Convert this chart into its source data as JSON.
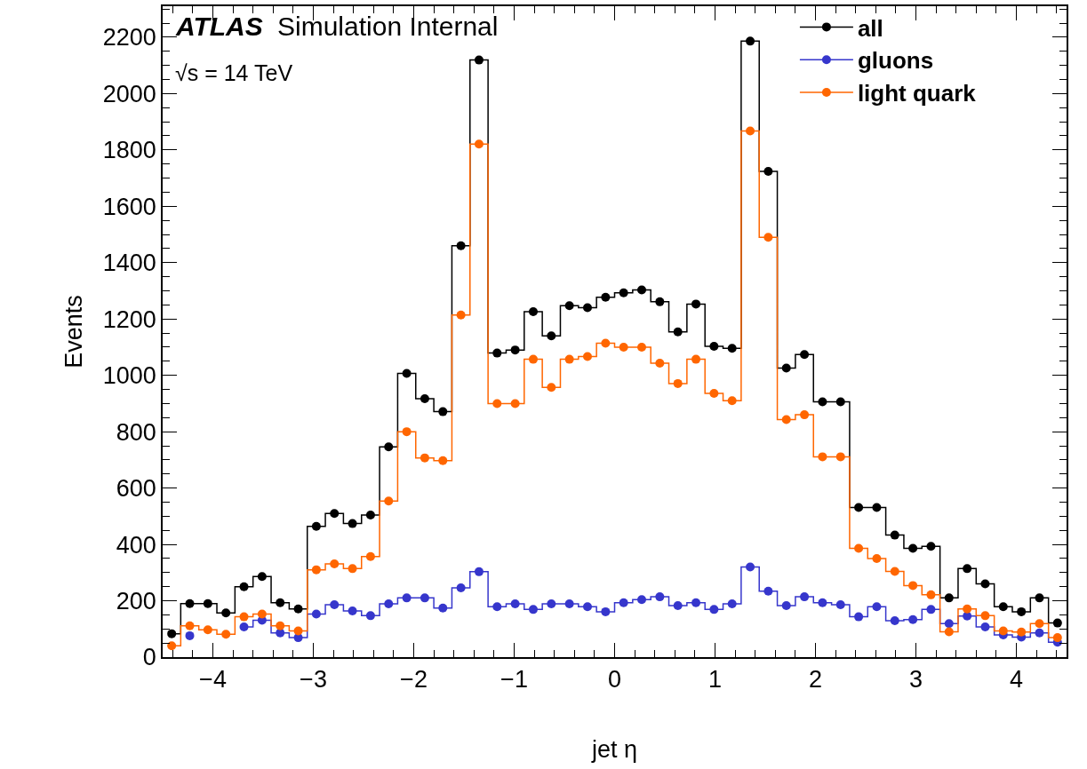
{
  "chart_data": {
    "type": "step",
    "xlabel": "jet η",
    "ylabel": "Events",
    "annotations": [
      "ATLAS",
      "Simulation Internal",
      "√s = 14 TeV"
    ],
    "x": [
      -4.41,
      -4.23,
      -4.05,
      -3.87,
      -3.69,
      -3.51,
      -3.33,
      -3.15,
      -2.97,
      -2.79,
      -2.61,
      -2.43,
      -2.25,
      -2.07,
      -1.89,
      -1.71,
      -1.53,
      -1.35,
      -1.17,
      -0.99,
      -0.81,
      -0.63,
      -0.45,
      -0.27,
      -0.09,
      0.09,
      0.27,
      0.45,
      0.63,
      0.81,
      0.99,
      1.17,
      1.35,
      1.53,
      1.71,
      1.89,
      2.07,
      2.25,
      2.43,
      2.61,
      2.79,
      2.97,
      3.15,
      3.33,
      3.51,
      3.69,
      3.87,
      4.05,
      4.23,
      4.41
    ],
    "series": [
      {
        "name": "all",
        "color": "#000000",
        "values": [
          83,
          190,
          190,
          157,
          250,
          286,
          193,
          171,
          464,
          510,
          474,
          504,
          746,
          1007,
          917,
          871,
          1460,
          2119,
          1079,
          1090,
          1226,
          1140,
          1247,
          1240,
          1277,
          1293,
          1303,
          1261,
          1154,
          1253,
          1103,
          1096,
          2186,
          1724,
          1026,
          1074,
          906,
          906,
          531,
          531,
          433,
          386,
          393,
          210,
          314,
          260,
          179,
          161,
          210,
          121
        ]
      },
      {
        "name": "gluons",
        "color": "#3636cc",
        "values": [
          null,
          76,
          null,
          null,
          107,
          131,
          86,
          69,
          153,
          186,
          164,
          147,
          189,
          210,
          210,
          174,
          246,
          303,
          179,
          189,
          169,
          189,
          189,
          179,
          161,
          193,
          204,
          214,
          183,
          193,
          169,
          189,
          320,
          234,
          183,
          214,
          193,
          186,
          143,
          179,
          129,
          133,
          169,
          119,
          146,
          107,
          79,
          71,
          86,
          53
        ]
      },
      {
        "name": "light quark",
        "color": "#ff6600",
        "values": [
          40,
          111,
          97,
          81,
          143,
          153,
          111,
          93,
          310,
          331,
          314,
          357,
          554,
          800,
          707,
          697,
          1214,
          1821,
          900,
          900,
          1057,
          957,
          1057,
          1067,
          1114,
          1100,
          1100,
          1043,
          971,
          1057,
          936,
          910,
          1867,
          1490,
          843,
          860,
          711,
          711,
          386,
          350,
          304,
          254,
          221,
          90,
          171,
          147,
          93,
          89,
          119,
          69
        ]
      }
    ],
    "xlim": [
      -4.5,
      4.5
    ],
    "xticks": [
      -4,
      -3,
      -2,
      -1,
      0,
      1,
      2,
      3,
      4
    ],
    "ylim": [
      0,
      2310
    ],
    "yticks": [
      0,
      200,
      400,
      600,
      800,
      1000,
      1200,
      1400,
      1600,
      1800,
      2000,
      2200
    ],
    "marker": "circle",
    "legend": "top right"
  }
}
